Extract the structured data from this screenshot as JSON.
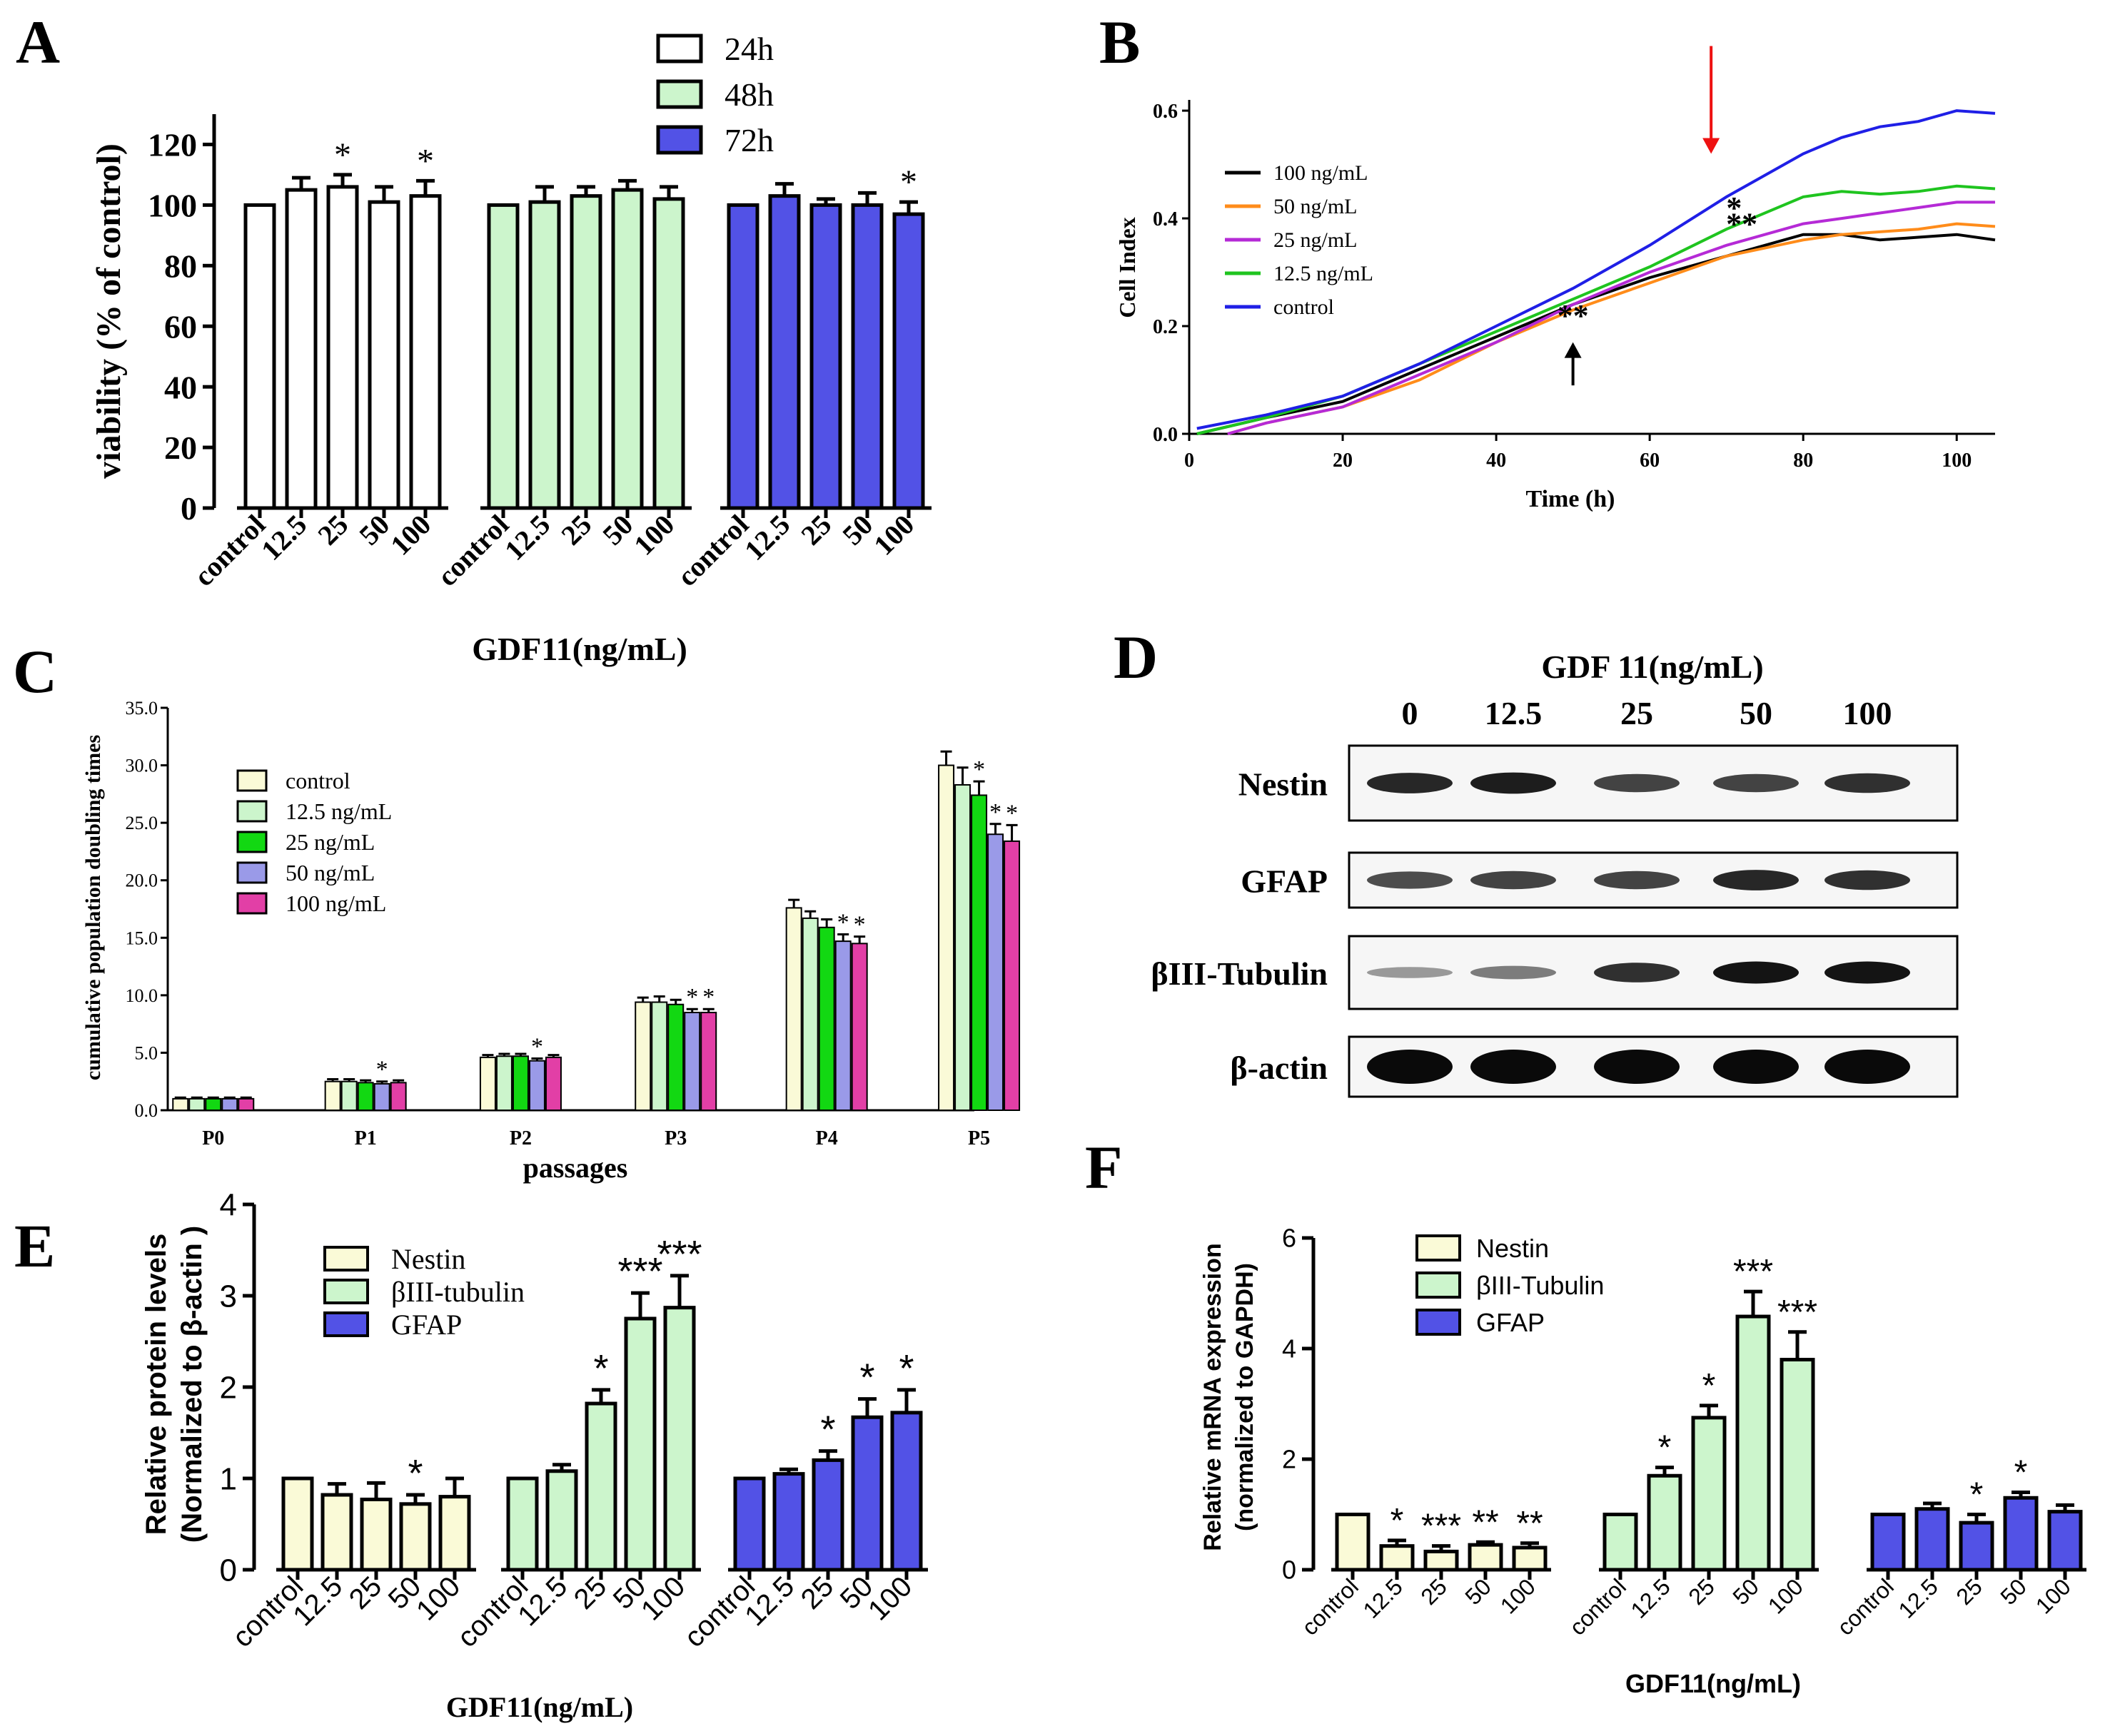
{
  "figure": {
    "panel_labels": [
      "A",
      "B",
      "C",
      "D",
      "E",
      "F"
    ]
  },
  "colors": {
    "white": "#ffffff",
    "light_green": "#ccf5cc",
    "blue": "#5252e6",
    "cream": "#fafad7",
    "green": "#12d812",
    "lavender": "#9a9ae8",
    "magenta": "#e23fa6",
    "line_100": "#000000",
    "line_50": "#ff8c1a",
    "line_25": "#b52ad6",
    "line_12_5": "#1fc41f",
    "line_control": "#1f1fe6",
    "red_arrow": "#ee1111",
    "black": "#000000"
  },
  "chart_data": [
    {
      "panel": "A",
      "type": "bar",
      "groups": [
        "24h",
        "48h",
        "72h"
      ],
      "categories": [
        "control",
        "12.5",
        "25",
        "50",
        "100"
      ],
      "series": [
        {
          "name": "24h",
          "color": "white",
          "values": [
            100,
            105,
            106,
            101,
            103
          ],
          "errors": [
            0,
            4,
            4,
            5,
            5
          ],
          "sig": [
            "",
            "",
            "*",
            "",
            "*"
          ]
        },
        {
          "name": "48h",
          "color": "light_green",
          "values": [
            100,
            101,
            103,
            105,
            102
          ],
          "errors": [
            0,
            5,
            3,
            3,
            4
          ],
          "sig": [
            "",
            "",
            "",
            "",
            ""
          ]
        },
        {
          "name": "72h",
          "color": "blue",
          "values": [
            100,
            103,
            100,
            100,
            97
          ],
          "errors": [
            0,
            4,
            2,
            4,
            4
          ],
          "sig": [
            "",
            "",
            "",
            "",
            "*"
          ]
        }
      ],
      "ylabel": "viability (% of control)",
      "xlabel": "GDF11(ng/mL)",
      "ylim": [
        0,
        130
      ],
      "yticks": [
        0,
        20,
        40,
        60,
        80,
        100,
        120
      ],
      "legend": "top-center"
    },
    {
      "panel": "B",
      "type": "line",
      "xlabel": "Time (h)",
      "ylabel": "Cell Index",
      "xlim": [
        0,
        105
      ],
      "ylim": [
        0,
        0.62
      ],
      "xticks": [
        0,
        20,
        40,
        60,
        80,
        100
      ],
      "yticks": [
        "0.0",
        "0.2",
        "0.4",
        "0.6"
      ],
      "series": [
        {
          "name": "100 ng/mL",
          "color": "line_100",
          "x": [
            1,
            10,
            20,
            30,
            40,
            50,
            60,
            70,
            80,
            85,
            90,
            95,
            100,
            105
          ],
          "y": [
            0.0,
            0.03,
            0.06,
            0.12,
            0.18,
            0.24,
            0.29,
            0.33,
            0.37,
            0.37,
            0.36,
            0.365,
            0.37,
            0.36
          ]
        },
        {
          "name": "50 ng/mL",
          "color": "line_50",
          "x": [
            5,
            10,
            20,
            30,
            40,
            50,
            60,
            70,
            80,
            85,
            90,
            95,
            100,
            105
          ],
          "y": [
            0.0,
            0.02,
            0.05,
            0.1,
            0.17,
            0.23,
            0.28,
            0.33,
            0.36,
            0.37,
            0.375,
            0.38,
            0.39,
            0.385
          ]
        },
        {
          "name": "25 ng/mL",
          "color": "line_25",
          "x": [
            5,
            10,
            20,
            30,
            40,
            50,
            60,
            70,
            80,
            85,
            90,
            95,
            100,
            105
          ],
          "y": [
            0.0,
            0.02,
            0.05,
            0.11,
            0.17,
            0.24,
            0.3,
            0.35,
            0.39,
            0.4,
            0.41,
            0.42,
            0.43,
            0.43
          ]
        },
        {
          "name": "12.5 ng/mL",
          "color": "line_12_5",
          "x": [
            1,
            10,
            20,
            30,
            40,
            50,
            60,
            70,
            80,
            85,
            90,
            95,
            100,
            105
          ],
          "y": [
            0.0,
            0.03,
            0.07,
            0.13,
            0.19,
            0.25,
            0.31,
            0.38,
            0.44,
            0.45,
            0.445,
            0.45,
            0.46,
            0.455
          ]
        },
        {
          "name": "control",
          "color": "line_control",
          "x": [
            1,
            10,
            20,
            30,
            40,
            50,
            60,
            70,
            80,
            85,
            90,
            95,
            100,
            105
          ],
          "y": [
            0.01,
            0.035,
            0.07,
            0.13,
            0.2,
            0.27,
            0.35,
            0.44,
            0.52,
            0.55,
            0.57,
            0.58,
            0.6,
            0.595
          ]
        }
      ],
      "annotations": [
        {
          "text": "**",
          "x": 50,
          "y": 0.2
        },
        {
          "text": "*",
          "x": 71,
          "y": 0.4
        },
        {
          "text": "**",
          "x": 72,
          "y": 0.37
        }
      ],
      "arrows": [
        {
          "color": "black",
          "x": 50,
          "y_from": 0.09,
          "y_to": 0.17
        },
        {
          "color": "red_arrow",
          "x": 68,
          "y_from": 0.72,
          "y_to": 0.52
        }
      ],
      "legend": "top-left"
    },
    {
      "panel": "C",
      "type": "bar",
      "categories": [
        "P0",
        "P1",
        "P2",
        "P3",
        "P4",
        "P5"
      ],
      "series": [
        {
          "name": "control",
          "color": "cream",
          "values": [
            1.0,
            2.5,
            4.6,
            9.4,
            17.6,
            30.0
          ],
          "errors": [
            0.1,
            0.2,
            0.2,
            0.4,
            0.7,
            1.2
          ],
          "sig": [
            "",
            "",
            "",
            "",
            "",
            ""
          ]
        },
        {
          "name": "12.5 ng/mL",
          "color": "light_green",
          "values": [
            1.0,
            2.5,
            4.7,
            9.4,
            16.7,
            28.3
          ],
          "errors": [
            0.1,
            0.2,
            0.2,
            0.5,
            0.6,
            1.5
          ],
          "sig": [
            "",
            "",
            "",
            "",
            "",
            ""
          ]
        },
        {
          "name": "25  ng/mL",
          "color": "green",
          "values": [
            1.0,
            2.4,
            4.7,
            9.2,
            15.9,
            27.4
          ],
          "errors": [
            0.1,
            0.2,
            0.2,
            0.4,
            0.7,
            1.2
          ],
          "sig": [
            "",
            "",
            "",
            "",
            "",
            "*"
          ]
        },
        {
          "name": "50  ng/mL",
          "color": "lavender",
          "values": [
            1.0,
            2.3,
            4.3,
            8.5,
            14.7,
            24.0
          ],
          "errors": [
            0.1,
            0.2,
            0.2,
            0.3,
            0.6,
            0.9
          ],
          "sig": [
            "",
            "*",
            "*",
            "*",
            "*",
            "*"
          ]
        },
        {
          "name": "100  ng/mL",
          "color": "magenta",
          "values": [
            1.0,
            2.4,
            4.6,
            8.5,
            14.5,
            23.4
          ],
          "errors": [
            0.1,
            0.2,
            0.2,
            0.3,
            0.6,
            1.4
          ],
          "sig": [
            "",
            "",
            "",
            "*",
            "*",
            "*"
          ]
        }
      ],
      "ylabel": "cumulative population doubling times",
      "xlabel": "passages",
      "ylim": [
        0,
        35
      ],
      "yticks": [
        "0.0",
        "5.0",
        "10.0",
        "15.0",
        "20.0",
        "25.0",
        "30.0",
        "35.0"
      ],
      "legend": "top-left"
    },
    {
      "panel": "D",
      "type": "table",
      "title": "GDF 11(ng/mL)",
      "columns": [
        "0",
        "12.5",
        "25",
        "50",
        "100"
      ],
      "rows": [
        {
          "label": "Nestin",
          "intensity": [
            0.85,
            0.9,
            0.7,
            0.7,
            0.8
          ]
        },
        {
          "label": "GFAP",
          "intensity": [
            0.65,
            0.7,
            0.7,
            0.85,
            0.8
          ]
        },
        {
          "label": "βIII-Tubulin",
          "intensity": [
            0.25,
            0.4,
            0.8,
            0.95,
            0.95
          ]
        },
        {
          "label": "β-actin",
          "intensity": [
            1.0,
            1.0,
            1.0,
            1.0,
            1.0
          ]
        }
      ]
    },
    {
      "panel": "E",
      "type": "bar",
      "groups": [
        "Nestin",
        "βIII-tubulin",
        "GFAP"
      ],
      "categories": [
        "control",
        "12.5",
        "25",
        "50",
        "100"
      ],
      "series": [
        {
          "name": "Nestin",
          "color": "cream",
          "values": [
            1.0,
            0.82,
            0.77,
            0.72,
            0.8
          ],
          "errors": [
            0,
            0.12,
            0.18,
            0.1,
            0.2
          ],
          "sig": [
            "",
            "",
            "",
            "*",
            ""
          ]
        },
        {
          "name": "βIII-tubulin",
          "color": "light_green",
          "values": [
            1.0,
            1.08,
            1.82,
            2.75,
            2.87
          ],
          "errors": [
            0,
            0.07,
            0.15,
            0.28,
            0.35
          ],
          "sig": [
            "",
            "",
            "*",
            "***",
            "***"
          ]
        },
        {
          "name": "GFAP",
          "color": "blue",
          "values": [
            1.0,
            1.05,
            1.2,
            1.67,
            1.72
          ],
          "errors": [
            0,
            0.05,
            0.1,
            0.2,
            0.25
          ],
          "sig": [
            "",
            "",
            "*",
            "*",
            "*"
          ]
        }
      ],
      "ylabel_lines": [
        "Relative protein levels",
        "(Normalized to β-actin )"
      ],
      "xlabel": "GDF11(ng/mL)",
      "ylim": [
        0,
        4
      ],
      "yticks": [
        0,
        1,
        2,
        3,
        4
      ],
      "legend": "top-left"
    },
    {
      "panel": "F",
      "type": "bar",
      "groups": [
        "Nestin",
        "βIII-Tubulin",
        "GFAP"
      ],
      "categories": [
        "control",
        "12.5",
        "25",
        "50",
        "100"
      ],
      "series": [
        {
          "name": "Nestin",
          "color": "cream",
          "values": [
            1.0,
            0.43,
            0.33,
            0.45,
            0.4
          ],
          "errors": [
            0,
            0.1,
            0.1,
            0.05,
            0.08
          ],
          "sig": [
            "",
            "*",
            "***",
            "**",
            "**"
          ]
        },
        {
          "name": "βIII-Tubulin",
          "color": "light_green",
          "values": [
            1.0,
            1.7,
            2.75,
            4.58,
            3.8
          ],
          "errors": [
            0,
            0.15,
            0.22,
            0.45,
            0.5
          ],
          "sig": [
            "",
            "*",
            "*",
            "***",
            "***"
          ]
        },
        {
          "name": "GFAP",
          "color": "blue",
          "values": [
            1.0,
            1.1,
            0.85,
            1.3,
            1.05
          ],
          "errors": [
            0,
            0.1,
            0.15,
            0.1,
            0.12
          ],
          "sig": [
            "",
            "",
            "*",
            "*",
            ""
          ]
        }
      ],
      "ylabel_lines": [
        "Relative mRNA expression",
        "(normalized to GAPDH)"
      ],
      "xlabel": "GDF11(ng/mL)",
      "ylim": [
        0,
        6
      ],
      "yticks": [
        0,
        2,
        4,
        6
      ],
      "legend": "top-left"
    }
  ]
}
